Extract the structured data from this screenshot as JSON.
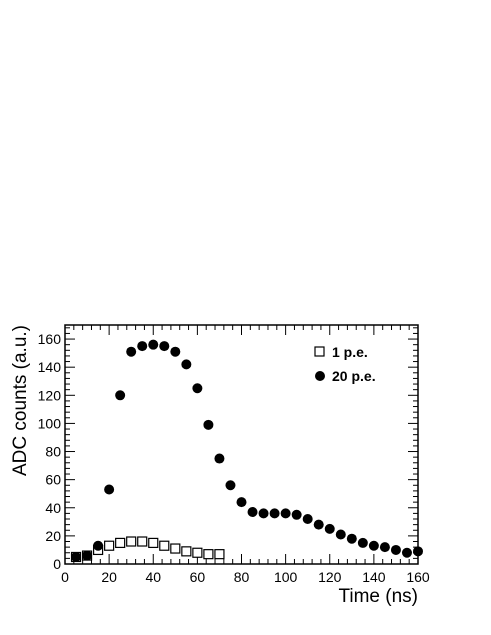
{
  "chart_data": {
    "type": "scatter",
    "xlabel": "Time (ns)",
    "ylabel": "ADC counts (a.u.)",
    "xlim": [
      0,
      160
    ],
    "ylim": [
      0,
      170
    ],
    "xticks": [
      0,
      20,
      40,
      60,
      80,
      100,
      120,
      140,
      160
    ],
    "yticks": [
      0,
      20,
      40,
      60,
      80,
      100,
      120,
      140,
      160
    ],
    "grid": false,
    "legend_position": "top-right",
    "series": [
      {
        "name": "1 p.e.",
        "marker": "open-square",
        "color": "#000000",
        "x": [
          5,
          10,
          15,
          20,
          25,
          30,
          35,
          40,
          45,
          50,
          55,
          60,
          65,
          70
        ],
        "y": [
          5,
          6,
          10,
          13,
          15,
          16,
          16,
          15,
          13,
          11,
          9,
          8,
          7,
          7
        ]
      },
      {
        "name": "20 p.e.",
        "marker": "filled-circle",
        "color": "#000000",
        "x": [
          5,
          10,
          15,
          20,
          25,
          30,
          35,
          40,
          45,
          50,
          55,
          60,
          65,
          70,
          75,
          80,
          85,
          90,
          95,
          100,
          105,
          110,
          115,
          120,
          125,
          130,
          135,
          140,
          145,
          150,
          155,
          160
        ],
        "y": [
          5,
          6,
          13,
          53,
          120,
          151,
          155,
          156,
          155,
          151,
          142,
          125,
          99,
          75,
          56,
          44,
          37,
          36,
          36,
          36,
          35,
          32,
          28,
          25,
          21,
          18,
          15,
          13,
          12,
          10,
          8,
          9
        ]
      }
    ]
  }
}
